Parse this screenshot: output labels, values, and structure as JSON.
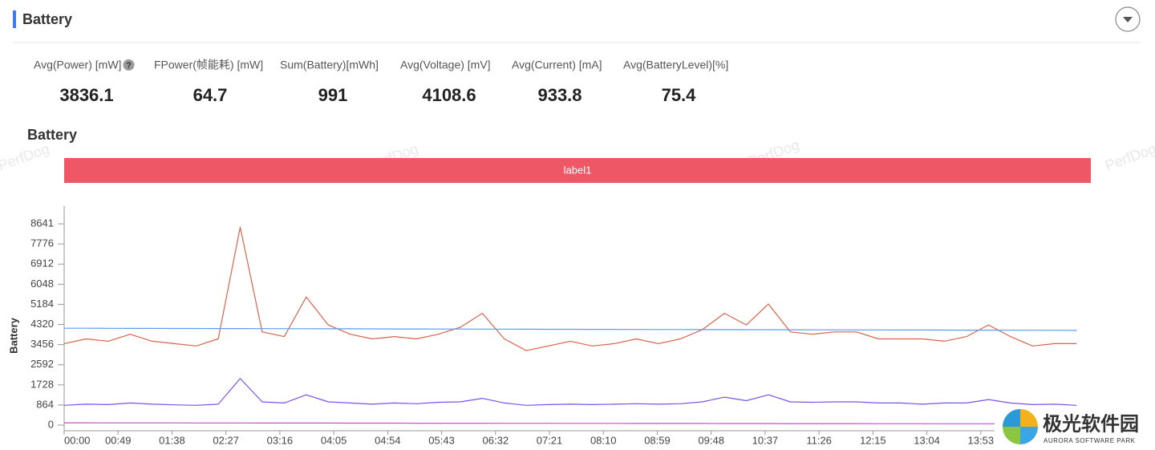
{
  "header": {
    "title": "Battery"
  },
  "stats": [
    {
      "label": "Avg(Power) [mW]",
      "value": 3836.1
    },
    {
      "label": "FPower(帧能耗) [mW]",
      "value": 64.7
    },
    {
      "label": "Sum(Battery)[mWh]",
      "value": 991
    },
    {
      "label": "Avg(Voltage) [mV]",
      "value": 4108.6
    },
    {
      "label": "Avg(Current) [mA]",
      "value": 933.8
    },
    {
      "label": "Avg(BatteryLevel)[%]",
      "value": 75.4
    }
  ],
  "chart_data": {
    "type": "line",
    "title": "Battery",
    "band_label": "label1",
    "band_color": "#ee5766",
    "watermark": "PerfDog",
    "ylabel": "Battery",
    "x": [
      0,
      20,
      40,
      60,
      80,
      100,
      120,
      140,
      160,
      180,
      200,
      220,
      240,
      260,
      280,
      300,
      320,
      340,
      360,
      380,
      400,
      420,
      440,
      460,
      480,
      500,
      520,
      540,
      560,
      580,
      600,
      620,
      640,
      660,
      680,
      700,
      720,
      740,
      760,
      780,
      800,
      820,
      840,
      860,
      880,
      900,
      920
    ],
    "xlim": [
      0,
      933
    ],
    "xticks": [
      {
        "value": 0,
        "label": "00:00"
      },
      {
        "value": 49,
        "label": "00:49"
      },
      {
        "value": 98,
        "label": "01:38"
      },
      {
        "value": 147,
        "label": "02:27"
      },
      {
        "value": 196,
        "label": "03:16"
      },
      {
        "value": 245,
        "label": "04:05"
      },
      {
        "value": 294,
        "label": "04:54"
      },
      {
        "value": 343,
        "label": "05:43"
      },
      {
        "value": 392,
        "label": "06:32"
      },
      {
        "value": 441,
        "label": "07:21"
      },
      {
        "value": 490,
        "label": "08:10"
      },
      {
        "value": 539,
        "label": "08:59"
      },
      {
        "value": 588,
        "label": "09:48"
      },
      {
        "value": 637,
        "label": "10:37"
      },
      {
        "value": 686,
        "label": "11:26"
      },
      {
        "value": 735,
        "label": "12:15"
      },
      {
        "value": 784,
        "label": "13:04"
      },
      {
        "value": 833,
        "label": "13:53"
      }
    ],
    "ylim": [
      0,
      9400
    ],
    "yticks": [
      0,
      864,
      1728,
      2592,
      3456,
      4320,
      5184,
      6048,
      6912,
      7776,
      8641
    ],
    "series": [
      {
        "color": "#d9634a",
        "values": [
          3500,
          3700,
          3600,
          3900,
          3600,
          3500,
          3400,
          3700,
          8500,
          4000,
          3800,
          5500,
          4300,
          3900,
          3700,
          3800,
          3700,
          3900,
          4200,
          4800,
          3700,
          3200,
          3400,
          3600,
          3400,
          3500,
          3700,
          3500,
          3700,
          4100,
          4800,
          4300,
          5200,
          4000,
          3900,
          4000,
          4000,
          3700,
          3700,
          3700,
          3600,
          3800,
          4300,
          3800,
          3400,
          3500,
          3500
        ]
      },
      {
        "color": "#5b9bf0",
        "values": [
          4160,
          4158,
          4156,
          4154,
          4152,
          4150,
          4148,
          4146,
          4144,
          4142,
          4140,
          4138,
          4136,
          4134,
          4132,
          4130,
          4128,
          4126,
          4124,
          4122,
          4120,
          4118,
          4116,
          4114,
          4112,
          4110,
          4108,
          4106,
          4104,
          4102,
          4100,
          4098,
          4096,
          4094,
          4092,
          4090,
          4088,
          4086,
          4084,
          4082,
          4080,
          4078,
          4076,
          4074,
          4072,
          4070,
          4068
        ]
      },
      {
        "color": "#7b52e6",
        "values": [
          850,
          900,
          880,
          950,
          900,
          870,
          850,
          900,
          2000,
          1000,
          950,
          1300,
          1000,
          950,
          900,
          950,
          920,
          980,
          1000,
          1150,
          950,
          850,
          880,
          900,
          880,
          900,
          920,
          900,
          920,
          1000,
          1200,
          1050,
          1300,
          1000,
          980,
          1000,
          1000,
          950,
          950,
          900,
          950,
          950,
          1100,
          950,
          880,
          900,
          850
        ]
      },
      {
        "color": "#c84fc8",
        "values": [
          100,
          99,
          98,
          97,
          96,
          95,
          94,
          93,
          92,
          91,
          90,
          89,
          88,
          87,
          86,
          85,
          84,
          83,
          82,
          81,
          80,
          79,
          78,
          77,
          76,
          75,
          74,
          73,
          72,
          71,
          70,
          69,
          68,
          67,
          66,
          65,
          64,
          63,
          62,
          61,
          60,
          59,
          58,
          57,
          56,
          55,
          54
        ]
      }
    ]
  },
  "logo": {
    "name": "极光软件园",
    "tagline": "AURORA SOFTWARE PARK"
  }
}
